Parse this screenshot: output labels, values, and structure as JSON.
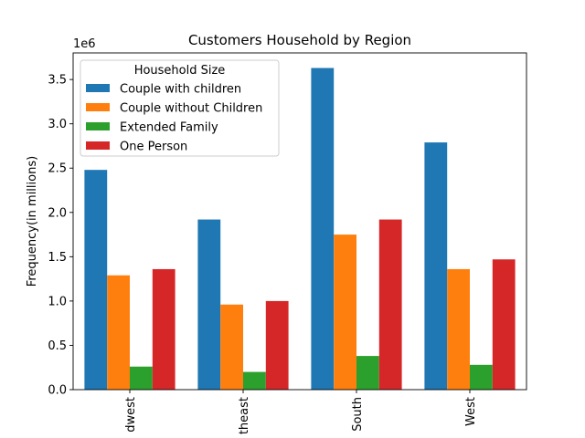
{
  "chart_data": {
    "type": "bar",
    "title": "Customers Household by Region",
    "xlabel": "",
    "ylabel": "Frequency(in millions)",
    "y_scale_label": "1e6",
    "categories": [
      "Midwest",
      "Northeast",
      "South",
      "West"
    ],
    "visible_category_labels": [
      "dwest",
      "theast",
      "South",
      "West"
    ],
    "ylim": [
      0,
      3800000
    ],
    "yticks": [
      0,
      500000,
      1000000,
      1500000,
      2000000,
      2500000,
      3000000,
      3500000
    ],
    "ytick_labels": [
      "0.0",
      "0.5",
      "1.0",
      "1.5",
      "2.0",
      "2.5",
      "3.0",
      "3.5"
    ],
    "legend": {
      "title": "Household Size",
      "placement": "upper-left"
    },
    "series": [
      {
        "name": "Couple with children",
        "color": "#1f77b4",
        "values": [
          2480000,
          1920000,
          3630000,
          2790000
        ]
      },
      {
        "name": "Couple without Children",
        "color": "#ff7f0e",
        "values": [
          1290000,
          960000,
          1750000,
          1360000
        ]
      },
      {
        "name": "Extended Family",
        "color": "#2ca02c",
        "values": [
          260000,
          200000,
          380000,
          280000
        ]
      },
      {
        "name": "One Person",
        "color": "#d62728",
        "values": [
          1360000,
          1000000,
          1920000,
          1470000
        ]
      }
    ]
  }
}
